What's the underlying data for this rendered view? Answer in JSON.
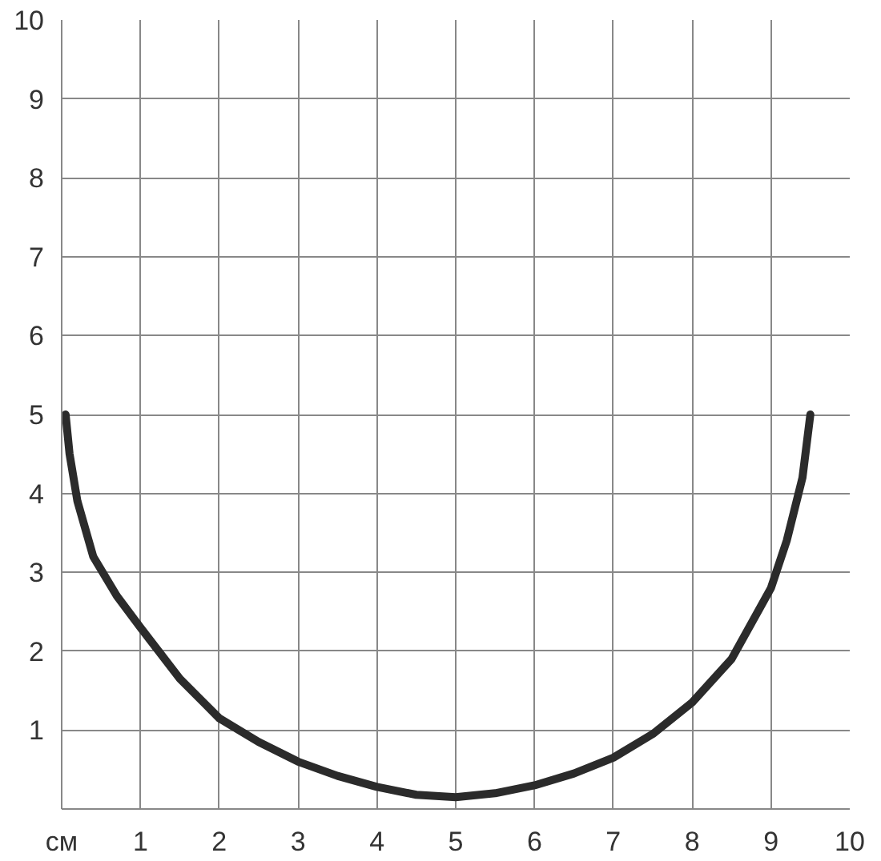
{
  "chart_data": {
    "type": "line",
    "x": [
      0.05,
      0.1,
      0.2,
      0.4,
      0.7,
      1,
      1.5,
      2,
      2.5,
      3,
      3.5,
      4,
      4.5,
      5,
      5.5,
      6,
      6.5,
      7,
      7.5,
      8,
      8.5,
      9,
      9.2,
      9.4,
      9.5
    ],
    "series": [
      {
        "color": "#2b2b2b",
        "values": [
          5,
          4.5,
          3.9,
          3.2,
          2.7,
          2.3,
          1.65,
          1.15,
          0.85,
          0.6,
          0.42,
          0.28,
          0.18,
          0.15,
          0.2,
          0.3,
          0.45,
          0.65,
          0.95,
          1.35,
          1.9,
          2.8,
          3.4,
          4.2,
          5
        ]
      }
    ],
    "xlim": [
      0,
      10
    ],
    "ylim": [
      0,
      10
    ],
    "xticks": [
      {
        "value": 0,
        "label": "см"
      },
      1,
      2,
      3,
      4,
      5,
      6,
      7,
      8,
      9,
      10
    ],
    "yticks": [
      1,
      2,
      3,
      4,
      5,
      6,
      7,
      8,
      9,
      10
    ],
    "grid": true,
    "line_style": "solid",
    "marker": "none"
  }
}
